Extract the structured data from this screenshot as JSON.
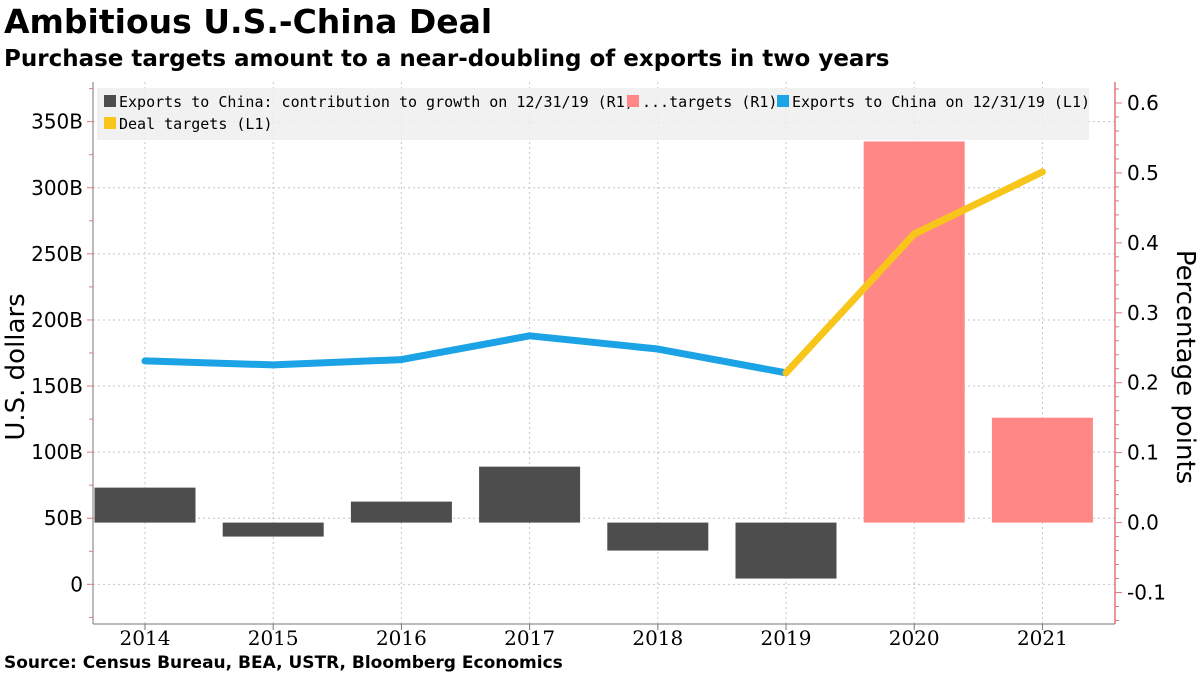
{
  "title": "Ambitious U.S.-China Deal",
  "subtitle": "Purchase targets amount to a near-doubling of exports in two years",
  "source": "Source: Census Bureau, BEA, USTR, Bloomberg Economics",
  "colors": {
    "dark_bar": "#4d4d4d",
    "target_bar": "#ff8785",
    "blue_line": "#1ba3e5",
    "yellow_line": "#f8c51b",
    "right_axis": "#e07878",
    "grid": "#c4c4c4",
    "legend_bg": "#eeeeee"
  },
  "chart_data": {
    "type": "bar+line",
    "title": "Ambitious U.S.-China Deal",
    "subtitle": "Purchase targets amount to a near-doubling of exports in two years",
    "categories": [
      "2014",
      "2015",
      "2016",
      "2017",
      "2018",
      "2019",
      "2020",
      "2021"
    ],
    "left_axis": {
      "label": "U.S. dollars",
      "range": [
        -30,
        380
      ],
      "ticks": [
        0,
        50,
        100,
        150,
        200,
        250,
        300,
        350
      ],
      "tick_labels": [
        "0",
        "50B",
        "100B",
        "150B",
        "200B",
        "250B",
        "300B",
        "350B"
      ]
    },
    "right_axis": {
      "label": "Percentage points",
      "range": [
        -0.145,
        0.63
      ],
      "ticks": [
        -0.1,
        0.0,
        0.1,
        0.2,
        0.3,
        0.4,
        0.5,
        0.6
      ],
      "tick_labels": [
        "-0.1",
        "0.0",
        "0.1",
        "0.2",
        "0.3",
        "0.4",
        "0.5",
        "0.6"
      ]
    },
    "series": [
      {
        "name": "Exports to China: contribution to growth on 12/31/19 (R1)",
        "type": "bar",
        "axis": "right",
        "color": "#4d4d4d",
        "values": [
          0.05,
          -0.02,
          0.03,
          0.08,
          -0.04,
          -0.08,
          null,
          null
        ]
      },
      {
        "name": "...targets (R1)",
        "type": "bar",
        "axis": "right",
        "color": "#ff8785",
        "values": [
          null,
          null,
          null,
          null,
          null,
          null,
          0.545,
          0.15
        ]
      },
      {
        "name": "Exports to China on 12/31/19 (L1)",
        "type": "line",
        "axis": "left",
        "color": "#1ba3e5",
        "values": [
          169,
          166,
          170,
          188,
          178,
          160,
          null,
          null
        ]
      },
      {
        "name": "Deal targets (L1)",
        "type": "line",
        "axis": "left",
        "color": "#f8c51b",
        "values": [
          null,
          null,
          null,
          null,
          null,
          160,
          265,
          312
        ]
      }
    ],
    "legend": {
      "position": "top",
      "items": [
        "Exports to China: contribution to growth on 12/31/19 (R1)",
        "...targets (R1)",
        "Exports to China on 12/31/19 (L1)",
        "Deal targets (L1)"
      ]
    },
    "grid": true
  }
}
